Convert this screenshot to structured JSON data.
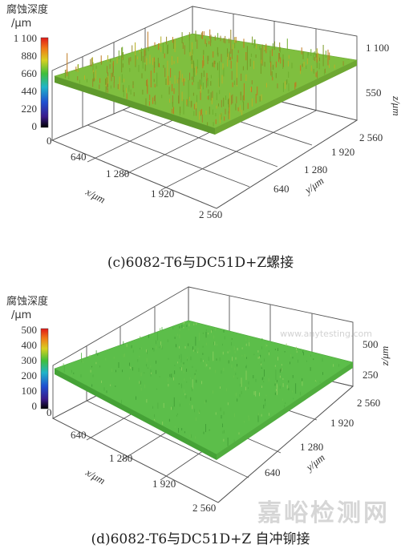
{
  "figures": [
    {
      "id": "c",
      "caption": "(c)6082-T6与DC51D+Z螺接",
      "colorbar": {
        "title_line1": "腐蚀深度",
        "title_line2": "/μm",
        "ticks": [
          "1 100",
          "880",
          "660",
          "440",
          "220",
          "0"
        ]
      },
      "z_ticks": [
        "1 100",
        "550",
        "0"
      ],
      "x_ticks": [
        "0",
        "640",
        "1 280",
        "1 920",
        "2 560"
      ],
      "y_ticks": [
        "2 560",
        "1 920",
        "1 280",
        "640",
        "0"
      ],
      "x_label": "x/μm",
      "y_label": "y/μm",
      "z_label": "z/μm",
      "surface_color": "#8cc63f"
    },
    {
      "id": "d",
      "caption": "(d)6082-T6与DC51D+Z 自冲铆接",
      "colorbar": {
        "title_line1": "腐蚀深度",
        "title_line2": "/μm",
        "ticks": [
          "500",
          "400",
          "300",
          "200",
          "100",
          "0"
        ]
      },
      "z_ticks": [
        "500",
        "250",
        "0"
      ],
      "x_ticks": [
        "0",
        "640",
        "1 280",
        "1 920",
        "2 560"
      ],
      "y_ticks": [
        "2 560",
        "1 920",
        "1 280",
        "640",
        "0"
      ],
      "x_label": "x/μm",
      "y_label": "y/μm",
      "z_label": "z/μm",
      "surface_color": "#5bbf4a"
    }
  ],
  "watermark": "嘉峪检测网",
  "watermark_url": "www.anytesting.com"
}
